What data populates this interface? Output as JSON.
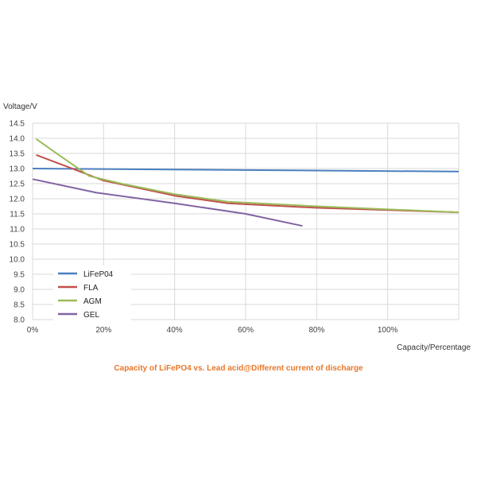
{
  "caption": "Capacity of LiFePO4 vs. Lead acid@Different current of discharge",
  "chart_data": {
    "type": "line",
    "xlabel": "Capacity/Percentage",
    "ylabel": "Voltage/V",
    "xlim": [
      0,
      120
    ],
    "ylim": [
      8.0,
      14.5
    ],
    "x_ticks": [
      0,
      20,
      40,
      60,
      80,
      100
    ],
    "x_tick_labels": [
      "0%",
      "20%",
      "40%",
      "60%",
      "80%",
      "100%"
    ],
    "y_ticks": [
      8.0,
      8.5,
      9.0,
      9.5,
      10.0,
      10.5,
      11.0,
      11.5,
      12.0,
      12.5,
      13.0,
      13.5,
      14.0,
      14.5
    ],
    "y_tick_labels": [
      "8.0",
      "8.5",
      "9.0",
      "9.5",
      "10.0",
      "10.5",
      "11.0",
      "11.5",
      "12.0",
      "12.5",
      "13.0",
      "13.5",
      "14.0",
      "14.5"
    ],
    "grid": true,
    "legend_position": "bottom-left",
    "series": [
      {
        "name": "LiFeP04",
        "color": "#4a7fbf",
        "x": [
          0,
          120
        ],
        "y": [
          13.0,
          12.9
        ]
      },
      {
        "name": "FLA",
        "color": "#c0504d",
        "x": [
          1,
          10,
          20,
          40,
          55,
          80,
          120
        ],
        "y": [
          13.45,
          13.05,
          12.6,
          12.1,
          11.85,
          11.7,
          11.55
        ]
      },
      {
        "name": "AGM",
        "color": "#9bbb59",
        "x": [
          1,
          8,
          16,
          25,
          40,
          55,
          80,
          120
        ],
        "y": [
          13.98,
          13.4,
          12.75,
          12.5,
          12.15,
          11.9,
          11.75,
          11.55
        ]
      },
      {
        "name": "GEL",
        "color": "#8064a2",
        "x": [
          0,
          18,
          40,
          60,
          76
        ],
        "y": [
          12.65,
          12.2,
          11.85,
          11.5,
          11.1
        ]
      }
    ]
  }
}
